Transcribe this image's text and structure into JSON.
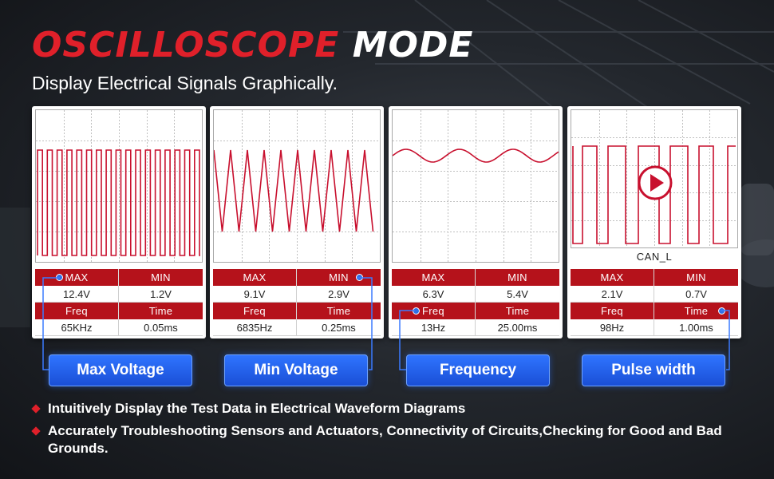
{
  "header": {
    "title_red": "OSCILLOSCOPE",
    "title_white": "MODE",
    "subtitle": "Display Electrical Signals Graphically."
  },
  "colors": {
    "accent_red": "#e0202a",
    "table_header_red": "#b5121b",
    "button_blue": "#2563eb",
    "waveform_red": "#c8102e"
  },
  "panels": [
    {
      "waveform": "square",
      "headers": [
        "MAX",
        "MIN",
        "Freq",
        "Time"
      ],
      "values": [
        "12.4V",
        "1.2V",
        "65KHz",
        "0.05ms"
      ],
      "highlight": "MAX",
      "button": "Max Voltage"
    },
    {
      "waveform": "triangle",
      "headers": [
        "MAX",
        "MIN",
        "Freq",
        "Time"
      ],
      "values": [
        "9.1V",
        "2.9V",
        "6835Hz",
        "0.25ms"
      ],
      "highlight": "MIN",
      "button": "Min Voltage"
    },
    {
      "waveform": "sine",
      "headers": [
        "MAX",
        "MIN",
        "Freq",
        "Time"
      ],
      "values": [
        "6.3V",
        "5.4V",
        "13Hz",
        "25.00ms"
      ],
      "highlight": "Freq",
      "button": "Frequency"
    },
    {
      "waveform": "pulse",
      "caption": "CAN_L",
      "headers": [
        "MAX",
        "MIN",
        "Freq",
        "Time"
      ],
      "values": [
        "2.1V",
        "0.7V",
        "98Hz",
        "1.00ms"
      ],
      "highlight": "Time",
      "button": "Pulse width"
    }
  ],
  "bullets": [
    "Intuitively Display the Test Data in Electrical Waveform Diagrams",
    "Accurately Troubleshooting Sensors and Actuators, Connectivity of Circuits,Checking for Good and Bad Grounds."
  ],
  "icons": {
    "play": "play-icon",
    "bullet": "diamond-icon"
  }
}
